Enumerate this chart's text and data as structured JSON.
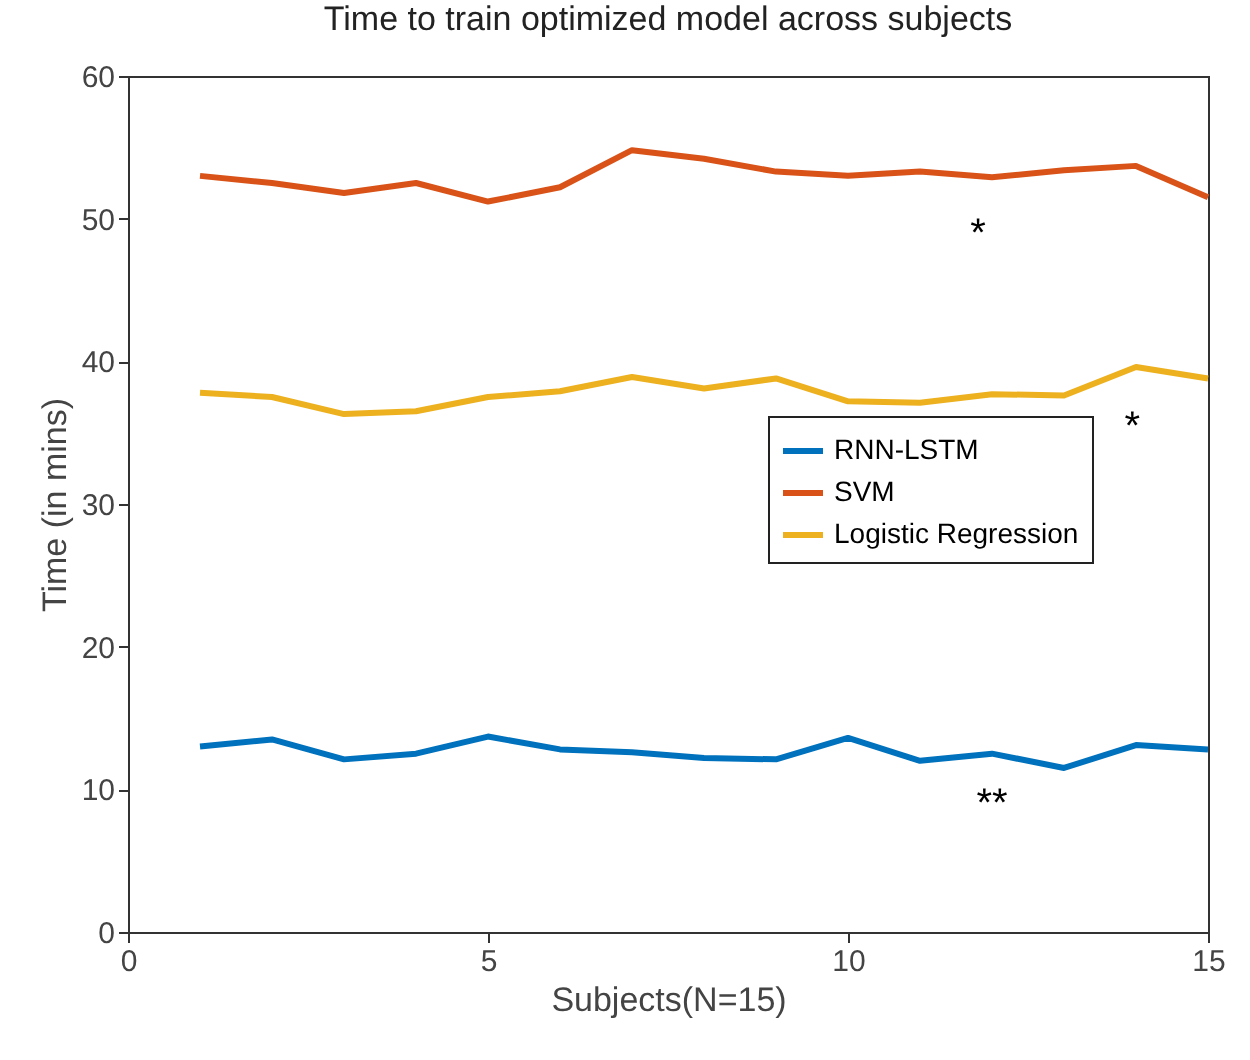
{
  "chart_data": {
    "type": "line",
    "title": "Time to train optimized model across subjects",
    "xlabel": "Subjects(N=15)",
    "ylabel": "Time (in mins)",
    "x": [
      1,
      2,
      3,
      4,
      5,
      6,
      7,
      8,
      9,
      10,
      11,
      12,
      13,
      14,
      15
    ],
    "series": [
      {
        "name": "RNN-LSTM",
        "color": "#0072bd",
        "values": [
          13.0,
          13.5,
          12.1,
          12.5,
          13.7,
          12.8,
          12.6,
          12.2,
          12.1,
          13.6,
          12.0,
          12.5,
          11.5,
          13.1,
          12.8
        ]
      },
      {
        "name": "SVM",
        "color": "#d95319",
        "values": [
          53.0,
          52.5,
          51.8,
          52.5,
          51.2,
          52.2,
          54.8,
          54.2,
          53.3,
          53.0,
          53.3,
          52.9,
          53.4,
          53.7,
          51.5
        ]
      },
      {
        "name": "Logistic Regression",
        "color": "#edb120",
        "values": [
          37.8,
          37.5,
          36.3,
          36.5,
          37.5,
          37.9,
          38.9,
          38.1,
          38.8,
          37.2,
          37.1,
          37.7,
          37.6,
          39.6,
          38.8
        ]
      }
    ],
    "annotations": [
      "*",
      "*",
      "**"
    ],
    "xlim": [
      0,
      15
    ],
    "xticks": [
      0,
      5,
      10,
      15
    ],
    "ylim": [
      0,
      60
    ],
    "yticks": [
      0,
      10,
      20,
      30,
      40,
      50,
      60
    ],
    "grid": false,
    "legend": "right",
    "marker": "none",
    "line_style": "solid"
  }
}
